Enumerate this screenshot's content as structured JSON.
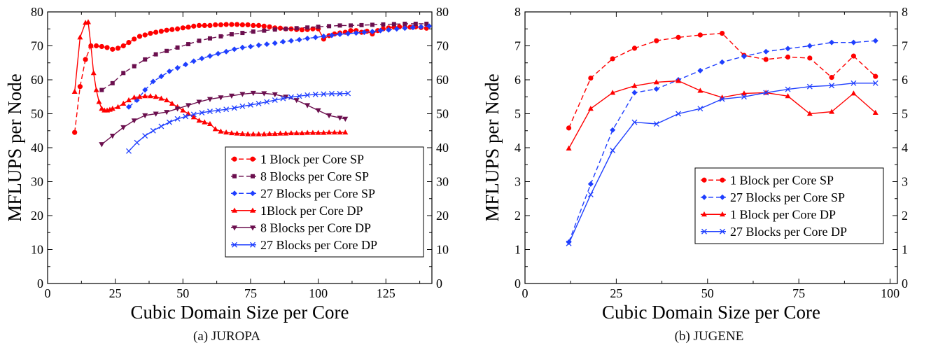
{
  "colors": {
    "red": "#ff0000",
    "purple": "#6b0f4e",
    "blue": "#1f3fff",
    "frame": "#000000"
  },
  "chart_data": [
    {
      "id": "a",
      "type": "line",
      "caption": "(a) JUROPA",
      "xlabel": "Cubic Domain Size per Core",
      "ylabel": "MFLUPS per Node",
      "xlim": [
        0,
        142
      ],
      "ylim": [
        0,
        80
      ],
      "xticks": [
        0,
        25,
        50,
        75,
        100,
        125
      ],
      "yticks": [
        0,
        10,
        20,
        30,
        40,
        50,
        60,
        70,
        80
      ],
      "tick_labels_x": [
        "0",
        "25",
        "50",
        "75",
        "100",
        "125"
      ],
      "tick_labels_y": [
        "0",
        "10",
        "20",
        "30",
        "40",
        "50",
        "60",
        "70",
        "80"
      ],
      "grid": false,
      "legend_position": "bottom-right",
      "series": [
        {
          "name": "1 Block per Core SP",
          "color": "#ff0000",
          "dash": true,
          "marker": "circle",
          "x": [
            10,
            12,
            14,
            16,
            18,
            20,
            22,
            24,
            26,
            28,
            30,
            32,
            34,
            36,
            38,
            40,
            42,
            44,
            46,
            48,
            50,
            52,
            54,
            56,
            58,
            60,
            62,
            64,
            66,
            68,
            70,
            72,
            74,
            76,
            78,
            80,
            82,
            84,
            86,
            88,
            90,
            92,
            94,
            96,
            98,
            100,
            102,
            104,
            106,
            108,
            110,
            112,
            114,
            116,
            118,
            120,
            122,
            124,
            126,
            128,
            130,
            132,
            134,
            136,
            138,
            140
          ],
          "y": [
            44.5,
            58,
            66,
            70,
            70,
            69.8,
            69.5,
            69,
            69.3,
            70,
            71,
            72,
            72.8,
            73.2,
            73.7,
            74,
            74.3,
            74.6,
            74.8,
            75,
            75.3,
            75.5,
            75.8,
            76,
            76,
            76,
            76.2,
            76.2,
            76.3,
            76.3,
            76.3,
            76.2,
            76.2,
            76,
            76,
            75.8,
            75.6,
            75.3,
            75.2,
            75,
            75,
            74.8,
            74.7,
            74.8,
            75,
            75,
            72,
            73,
            73.5,
            73.8,
            74,
            74.5,
            74.5,
            74,
            74.3,
            73.5,
            74.5,
            75,
            75.3,
            75.5,
            75.6,
            75.5,
            75.5,
            75.6,
            75.4,
            75.2
          ]
        },
        {
          "name": "8 Blocks per Core SP",
          "color": "#6b0f4e",
          "dash": true,
          "marker": "square",
          "x": [
            20,
            24,
            28,
            32,
            36,
            40,
            44,
            48,
            52,
            56,
            60,
            64,
            68,
            72,
            76,
            80,
            84,
            88,
            92,
            96,
            100,
            104,
            108,
            112,
            116,
            120,
            124,
            128,
            132,
            136,
            140
          ],
          "y": [
            57,
            59,
            62,
            64,
            66,
            67.5,
            68.5,
            69.5,
            70.5,
            71.5,
            72.2,
            72.8,
            73.4,
            73.8,
            74.2,
            74.5,
            74.8,
            75,
            75.2,
            75.4,
            75.6,
            75.8,
            76,
            76,
            76.1,
            76.2,
            76.3,
            76.4,
            76.5,
            76.5,
            76.5
          ]
        },
        {
          "name": "27 Blocks per Core SP",
          "color": "#1f3fff",
          "dash": true,
          "marker": "diamond",
          "x": [
            30,
            33,
            36,
            39,
            42,
            45,
            48,
            51,
            54,
            57,
            60,
            63,
            66,
            69,
            72,
            75,
            78,
            81,
            84,
            87,
            90,
            93,
            96,
            99,
            102,
            105,
            108,
            111,
            114,
            117,
            120,
            123,
            126,
            129,
            132,
            135,
            138,
            141
          ],
          "y": [
            52,
            54,
            57,
            59.5,
            61,
            62.5,
            63.5,
            64.5,
            65.5,
            66.3,
            67,
            67.7,
            68.3,
            69,
            69.5,
            69.8,
            70.2,
            70.5,
            70.8,
            71.2,
            71.5,
            71.8,
            72.2,
            72.5,
            72.8,
            73.1,
            73.4,
            73.6,
            73.8,
            74,
            74.2,
            74.5,
            74.7,
            75,
            75.2,
            75.4,
            75.6,
            75.8
          ]
        },
        {
          "name": "1Block per Core DP",
          "color": "#ff0000",
          "dash": false,
          "marker": "triangle",
          "x": [
            10,
            12,
            14,
            15,
            16,
            17,
            18,
            19,
            20,
            21,
            22,
            23,
            24,
            26,
            28,
            30,
            32,
            34,
            36,
            38,
            40,
            42,
            44,
            46,
            48,
            50,
            52,
            54,
            56,
            58,
            60,
            62,
            64,
            66,
            68,
            70,
            72,
            74,
            76,
            78,
            80,
            82,
            84,
            86,
            88,
            90,
            92,
            94,
            96,
            98,
            100,
            102,
            104,
            106,
            108,
            110
          ],
          "y": [
            56.5,
            72.5,
            76.8,
            77,
            70,
            62,
            57,
            53.5,
            51.5,
            51,
            51,
            51.2,
            51.5,
            52,
            53,
            54,
            54.8,
            55,
            55.2,
            55.2,
            55,
            54.5,
            54,
            53,
            52,
            51,
            50,
            49,
            48,
            47.5,
            47,
            45.5,
            44.8,
            44.5,
            44.3,
            44.2,
            44.1,
            44,
            44,
            44,
            44,
            44.1,
            44.1,
            44.2,
            44.2,
            44.3,
            44.3,
            44.3,
            44.4,
            44.4,
            44.4,
            44.4,
            44.5,
            44.5,
            44.5,
            44.5
          ]
        },
        {
          "name": "8 Blocks per Core DP",
          "color": "#6b0f4e",
          "dash": false,
          "marker": "triangle-down",
          "x": [
            20,
            24,
            28,
            32,
            36,
            40,
            44,
            48,
            52,
            56,
            60,
            64,
            68,
            72,
            76,
            80,
            84,
            88,
            92,
            96,
            100,
            104,
            108,
            110
          ],
          "y": [
            41,
            43.5,
            46,
            48,
            49.5,
            50,
            50.5,
            51.5,
            52.5,
            53.5,
            54.3,
            54.8,
            55.3,
            55.8,
            56.1,
            56,
            55.7,
            55,
            54,
            52.5,
            51,
            49.5,
            48.8,
            48.5
          ]
        },
        {
          "name": "27 Blocks per Core DP",
          "color": "#1f3fff",
          "dash": false,
          "marker": "x",
          "x": [
            30,
            33,
            36,
            39,
            42,
            45,
            48,
            51,
            54,
            57,
            60,
            63,
            66,
            69,
            72,
            75,
            78,
            81,
            84,
            87,
            90,
            93,
            96,
            99,
            102,
            105,
            108,
            111
          ],
          "y": [
            39,
            41.5,
            43.5,
            45,
            46.3,
            47.5,
            48.5,
            49.2,
            49.8,
            50.3,
            50.7,
            51,
            51.3,
            51.7,
            52.2,
            52.6,
            53,
            53.5,
            54,
            54.5,
            54.9,
            55.2,
            55.5,
            55.7,
            55.8,
            55.9,
            55.9,
            56
          ]
        }
      ]
    },
    {
      "id": "b",
      "type": "line",
      "caption": "(b) JUGENE",
      "xlabel": "Cubic Domain Size per Core",
      "ylabel": "MFLUPS per Node",
      "xlim": [
        0,
        102
      ],
      "ylim": [
        0,
        8
      ],
      "xticks": [
        0,
        25,
        50,
        75,
        100
      ],
      "yticks": [
        0,
        1,
        2,
        3,
        4,
        5,
        6,
        7,
        8
      ],
      "tick_labels_x": [
        "0",
        "25",
        "50",
        "75",
        "100"
      ],
      "tick_labels_y": [
        "0",
        "1",
        "2",
        "3",
        "4",
        "5",
        "6",
        "7",
        "8"
      ],
      "grid": false,
      "legend_position": "bottom-right",
      "series": [
        {
          "name": "1 Block per Core SP",
          "color": "#ff0000",
          "dash": true,
          "marker": "circle",
          "x": [
            12,
            18,
            24,
            30,
            36,
            42,
            48,
            54,
            60,
            66,
            72,
            78,
            84,
            90,
            96
          ],
          "y": [
            4.58,
            6.05,
            6.62,
            6.93,
            7.15,
            7.25,
            7.32,
            7.37,
            6.72,
            6.6,
            6.67,
            6.64,
            6.07,
            6.7,
            6.1
          ]
        },
        {
          "name": "27 Blocks per Core SP",
          "color": "#1f3fff",
          "dash": true,
          "marker": "diamond",
          "x": [
            12,
            18,
            24,
            30,
            36,
            42,
            48,
            54,
            60,
            66,
            72,
            78,
            84,
            90,
            96
          ],
          "y": [
            1.22,
            2.93,
            4.52,
            5.62,
            5.73,
            6.0,
            6.27,
            6.52,
            6.69,
            6.83,
            6.92,
            7.0,
            7.1,
            7.1,
            7.15
          ]
        },
        {
          "name": "1 Block per Core DP",
          "color": "#ff0000",
          "dash": false,
          "marker": "triangle",
          "x": [
            12,
            18,
            24,
            30,
            36,
            42,
            48,
            54,
            60,
            66,
            72,
            78,
            84,
            90,
            96
          ],
          "y": [
            3.98,
            5.15,
            5.62,
            5.82,
            5.93,
            5.97,
            5.68,
            5.48,
            5.6,
            5.62,
            5.52,
            5.0,
            5.06,
            5.6,
            5.03
          ]
        },
        {
          "name": "27 Blocks per Core DP",
          "color": "#1f3fff",
          "dash": false,
          "marker": "x",
          "x": [
            12,
            18,
            24,
            30,
            36,
            42,
            48,
            54,
            60,
            66,
            72,
            78,
            84,
            90,
            96
          ],
          "y": [
            1.18,
            2.62,
            3.92,
            4.75,
            4.7,
            5.0,
            5.15,
            5.43,
            5.5,
            5.62,
            5.72,
            5.8,
            5.83,
            5.9,
            5.9
          ]
        }
      ]
    }
  ]
}
